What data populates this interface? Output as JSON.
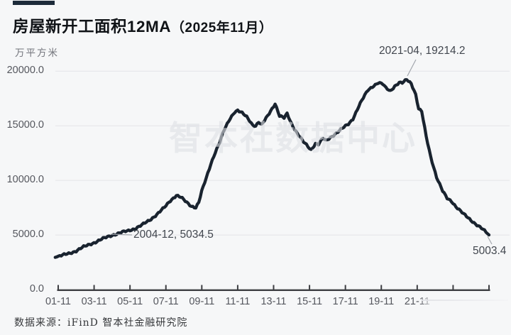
{
  "header": {
    "title_main": "房屋新开工面积12MA",
    "title_paren": "（2025年11月）",
    "unit_label": "万平方米"
  },
  "watermark": "智本社数据中心",
  "annotations": {
    "peak": "2021-04, 19214.2",
    "mid": "2004-12, 5034.5",
    "last": "5003.4"
  },
  "footer": {
    "source_text": "数据来源：iFinD 智本社金融研究院"
  },
  "chart_data": {
    "type": "line",
    "title": "房屋新开工面积12MA（2025年11月）",
    "ylabel": "万平方米",
    "ylim": [
      0,
      20000
    ],
    "grid": true,
    "ytick_labels": [
      "20000.0",
      "15000.0",
      "10000.0",
      "5000.0",
      "0.0"
    ],
    "xtick_labels": [
      "01-11",
      "03-11",
      "05-11",
      "07-11",
      "09-11",
      "11-11",
      "13-11",
      "15-11",
      "17-11",
      "19-11",
      "21-11"
    ],
    "x_start": "2001-11",
    "x_end": "2025-11",
    "line_color": "#19232f",
    "grid_color": "#e4e4e8",
    "series": [
      {
        "name": "房屋新开工面积12MA",
        "points": [
          [
            "2001-09",
            2950
          ],
          [
            "2002-01",
            3100
          ],
          [
            "2002-06",
            3300
          ],
          [
            "2002-11",
            3550
          ],
          [
            "2003-04",
            3900
          ],
          [
            "2003-10",
            4250
          ],
          [
            "2004-04",
            4600
          ],
          [
            "2004-08",
            4820
          ],
          [
            "2004-12",
            5034.5
          ],
          [
            "2005-04",
            5180
          ],
          [
            "2005-09",
            5350
          ],
          [
            "2006-02",
            5580
          ],
          [
            "2006-07",
            5900
          ],
          [
            "2006-12",
            6350
          ],
          [
            "2007-05",
            6900
          ],
          [
            "2007-10",
            7500
          ],
          [
            "2008-02",
            8150
          ],
          [
            "2008-06",
            8650
          ],
          [
            "2008-09",
            8450
          ],
          [
            "2009-01",
            7950
          ],
          [
            "2009-04",
            7650
          ],
          [
            "2009-07",
            7540
          ],
          [
            "2009-09",
            8000
          ],
          [
            "2009-11",
            9000
          ],
          [
            "2010-02",
            10200
          ],
          [
            "2010-05",
            11500
          ],
          [
            "2010-08",
            12600
          ],
          [
            "2010-11",
            13500
          ],
          [
            "2011-02",
            14600
          ],
          [
            "2011-06",
            15700
          ],
          [
            "2011-09",
            16300
          ],
          [
            "2011-11",
            16420
          ],
          [
            "2012-02",
            16150
          ],
          [
            "2012-05",
            15800
          ],
          [
            "2012-09",
            15100
          ],
          [
            "2012-11",
            15000
          ],
          [
            "2013-01",
            15350
          ],
          [
            "2013-03",
            15050
          ],
          [
            "2013-07",
            15900
          ],
          [
            "2013-10",
            16600
          ],
          [
            "2013-12",
            17050
          ],
          [
            "2014-03",
            15900
          ],
          [
            "2014-06",
            15700
          ],
          [
            "2014-08",
            16100
          ],
          [
            "2014-11",
            15200
          ],
          [
            "2015-02",
            14500
          ],
          [
            "2015-07",
            13500
          ],
          [
            "2015-12",
            12800
          ],
          [
            "2016-03",
            13400
          ],
          [
            "2016-05",
            13300
          ],
          [
            "2016-08",
            13850
          ],
          [
            "2016-10",
            13600
          ],
          [
            "2017-03",
            14150
          ],
          [
            "2017-08",
            14650
          ],
          [
            "2018-01",
            15150
          ],
          [
            "2018-04",
            15650
          ],
          [
            "2018-08",
            16800
          ],
          [
            "2018-11",
            17550
          ],
          [
            "2019-02",
            18250
          ],
          [
            "2019-06",
            18700
          ],
          [
            "2019-09",
            18950
          ],
          [
            "2019-12",
            18800
          ],
          [
            "2020-02",
            18450
          ],
          [
            "2020-05",
            18200
          ],
          [
            "2020-08",
            18650
          ],
          [
            "2020-11",
            18950
          ],
          [
            "2021-01",
            18900
          ],
          [
            "2021-04",
            19214.2
          ],
          [
            "2021-07",
            18900
          ],
          [
            "2021-10",
            17900
          ],
          [
            "2021-12",
            16550
          ],
          [
            "2022-02",
            16300
          ],
          [
            "2022-05",
            14000
          ],
          [
            "2022-08",
            12200
          ],
          [
            "2022-12",
            10300
          ],
          [
            "2023-04",
            9000
          ],
          [
            "2023-07",
            8350
          ],
          [
            "2023-10",
            8100
          ],
          [
            "2024-01",
            7600
          ],
          [
            "2024-06",
            6900
          ],
          [
            "2024-12",
            6250
          ],
          [
            "2025-06",
            5600
          ],
          [
            "2025-11",
            5003.4
          ]
        ]
      }
    ]
  }
}
